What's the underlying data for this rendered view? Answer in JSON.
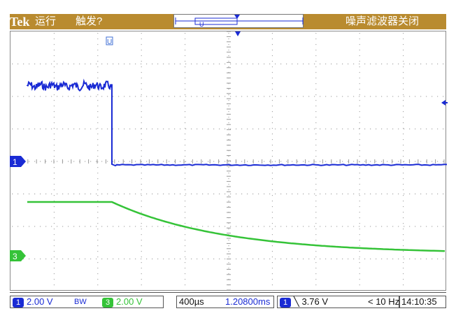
{
  "header": {
    "brand": "Tek",
    "run_state": "运行",
    "trigger_state": "触发?",
    "filter_status": "噪声滤波器关闭"
  },
  "channels": {
    "ch1": {
      "marker": "1",
      "color": "#1a2bd4"
    },
    "ch3": {
      "marker": "3",
      "color": "#35c338"
    }
  },
  "status": {
    "ch1_label": "1",
    "ch1_scale": "2.00 V",
    "bw_label": "BW",
    "ch3_label": "3",
    "ch3_scale": "2.00 V",
    "timebase": "400µs",
    "delay": "1.20800ms",
    "trig_channel": "1",
    "trig_level": "╲ 3.76 V",
    "trig_freq": "< 10 Hz",
    "clock": "14:10:35"
  },
  "colors": {
    "header_bg": "#b98b2f",
    "ch1": "#1a2bd4",
    "ch3": "#35c338",
    "grid": "#9a9a9a"
  }
}
